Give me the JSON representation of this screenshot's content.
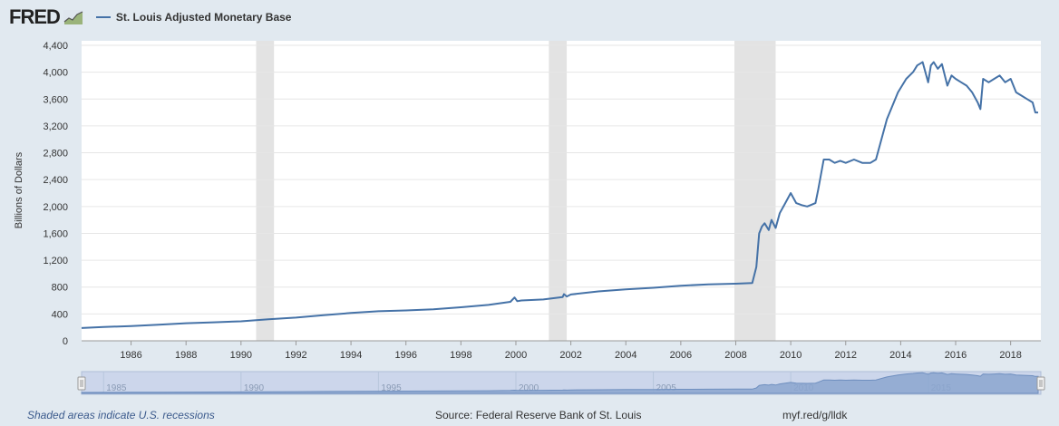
{
  "header": {
    "logo": "FRED",
    "legend_series": "St. Louis Adjusted Monetary Base"
  },
  "footer": {
    "note": "Shaded areas indicate U.S. recessions",
    "source": "Source: Federal Reserve Bank of St. Louis",
    "link": "myf.red/g/lldk"
  },
  "colors": {
    "series": "#4572a7",
    "recession": "#e3e3e3",
    "background": "#e1e9f0",
    "plot": "#ffffff"
  },
  "chart_data": {
    "type": "line",
    "ylabel": "Billions of Dollars",
    "ylim": [
      0,
      4400
    ],
    "xlim": [
      1984.2,
      2019.1
    ],
    "yticks": [
      0,
      400,
      800,
      1200,
      1600,
      2000,
      2400,
      2800,
      3200,
      3600,
      4000,
      4400
    ],
    "ytick_labels": [
      "0",
      "400",
      "800",
      "1,200",
      "1,600",
      "2,000",
      "2,400",
      "2,800",
      "3,200",
      "3,600",
      "4,000",
      "4,400"
    ],
    "xticks": [
      1986,
      1988,
      1990,
      1992,
      1994,
      1996,
      1998,
      2000,
      2002,
      2004,
      2006,
      2008,
      2010,
      2012,
      2014,
      2016,
      2018
    ],
    "xtick_labels": [
      "1986",
      "1988",
      "1990",
      "1992",
      "1994",
      "1996",
      "1998",
      "2000",
      "2002",
      "2004",
      "2006",
      "2008",
      "2010",
      "2012",
      "2014",
      "2016",
      "2018"
    ],
    "grid": true,
    "recessions": [
      [
        1990.55,
        1991.2
      ],
      [
        2001.2,
        2001.85
      ],
      [
        2007.95,
        2009.45
      ]
    ],
    "series": [
      {
        "name": "St. Louis Adjusted Monetary Base",
        "x": [
          1984.2,
          1985,
          1986,
          1987,
          1988,
          1989,
          1990,
          1991,
          1992,
          1993,
          1994,
          1995,
          1996,
          1997,
          1998,
          1999,
          1999.8,
          1999.95,
          2000.05,
          2000.2,
          2001,
          2001.7,
          2001.75,
          2001.85,
          2002,
          2003,
          2004,
          2005,
          2006,
          2007,
          2008,
          2008.6,
          2008.75,
          2008.85,
          2008.95,
          2009.05,
          2009.2,
          2009.3,
          2009.45,
          2009.6,
          2009.8,
          2010.0,
          2010.2,
          2010.4,
          2010.6,
          2010.9,
          2011.0,
          2011.2,
          2011.4,
          2011.6,
          2011.8,
          2012.0,
          2012.3,
          2012.6,
          2012.9,
          2013.1,
          2013.5,
          2013.9,
          2014.2,
          2014.45,
          2014.6,
          2014.8,
          2015.0,
          2015.1,
          2015.2,
          2015.35,
          2015.5,
          2015.7,
          2015.85,
          2016.0,
          2016.2,
          2016.4,
          2016.6,
          2016.8,
          2016.9,
          2017.0,
          2017.2,
          2017.4,
          2017.6,
          2017.8,
          2018.0,
          2018.2,
          2018.4,
          2018.6,
          2018.8,
          2018.9,
          2019.0
        ],
        "y": [
          190,
          205,
          220,
          240,
          262,
          275,
          290,
          320,
          345,
          380,
          415,
          440,
          452,
          470,
          500,
          535,
          580,
          645,
          590,
          600,
          615,
          650,
          695,
          660,
          690,
          735,
          765,
          790,
          820,
          840,
          850,
          860,
          1100,
          1600,
          1700,
          1750,
          1650,
          1800,
          1680,
          1900,
          2050,
          2200,
          2050,
          2020,
          2000,
          2050,
          2250,
          2700,
          2700,
          2650,
          2680,
          2650,
          2700,
          2650,
          2650,
          2700,
          3300,
          3700,
          3900,
          4000,
          4100,
          4150,
          3850,
          4100,
          4150,
          4050,
          4120,
          3800,
          3950,
          3900,
          3850,
          3800,
          3700,
          3550,
          3450,
          3900,
          3850,
          3900,
          3950,
          3850,
          3900,
          3700,
          3650,
          3600,
          3550,
          3400,
          3400
        ]
      }
    ],
    "navigator": {
      "xtick_labels": [
        "1985",
        "1990",
        "1995",
        "2000",
        "2005",
        "2010",
        "2015"
      ],
      "xticks": [
        1985,
        1990,
        1995,
        2000,
        2005,
        2010,
        2015
      ]
    }
  }
}
